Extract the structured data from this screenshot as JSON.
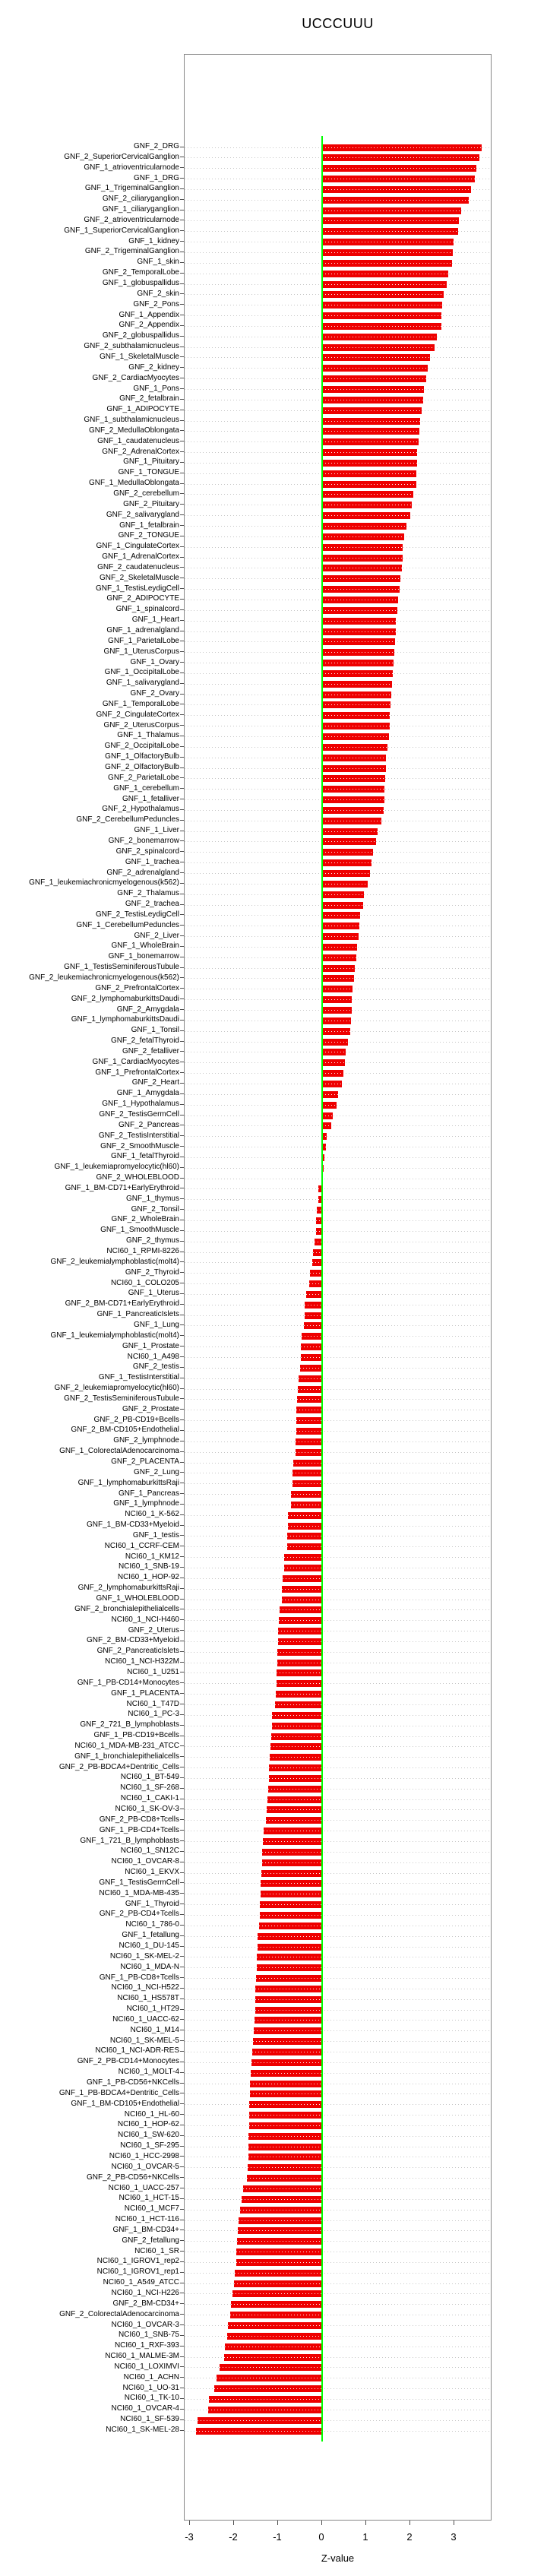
{
  "title": "UCCCUUU",
  "chart_data": {
    "type": "bar",
    "orientation": "horizontal",
    "title": "UCCCUUU",
    "xlabel": "Z-value",
    "xlim": [
      -3.12,
      3.86
    ],
    "xticks": [
      -3,
      -2,
      -1,
      0,
      1,
      2,
      3
    ],
    "grid": "dotted-row-guides",
    "legend": "none",
    "colors": {
      "bar": "#ee0000",
      "zero_line": "#00ff00",
      "guide_dots": "#c6c6c6",
      "frame": "#878787",
      "text": "#000000"
    },
    "categories": [
      "GNF_2_DRG",
      "GNF_2_SuperiorCervicalGanglion",
      "GNF_1_atrioventricularnode",
      "GNF_1_DRG",
      "GNF_1_TrigeminalGanglion",
      "GNF_2_ciliaryganglion",
      "GNF_1_ciliaryganglion",
      "GNF_2_atrioventricularnode",
      "GNF_1_SuperiorCervicalGanglion",
      "GNF_1_kidney",
      "GNF_2_TrigeminalGanglion",
      "GNF_1_skin",
      "GNF_2_TemporalLobe",
      "GNF_1_globuspallidus",
      "GNF_2_skin",
      "GNF_2_Pons",
      "GNF_1_Appendix",
      "GNF_2_Appendix",
      "GNF_2_globuspallidus",
      "GNF_2_subthalamicnucleus",
      "GNF_1_SkeletalMuscle",
      "GNF_2_kidney",
      "GNF_2_CardiacMyocytes",
      "GNF_1_Pons",
      "GNF_2_fetalbrain",
      "GNF_1_ADIPOCYTE",
      "GNF_1_subthalamicnucleus",
      "GNF_2_MedullaOblongata",
      "GNF_1_caudatenucleus",
      "GNF_2_AdrenalCortex",
      "GNF_1_Pituitary",
      "GNF_1_TONGUE",
      "GNF_1_MedullaOblongata",
      "GNF_2_cerebellum",
      "GNF_2_Pituitary",
      "GNF_2_salivarygland",
      "GNF_1_fetalbrain",
      "GNF_2_TONGUE",
      "GNF_1_CingulateCortex",
      "GNF_1_AdrenalCortex",
      "GNF_2_caudatenucleus",
      "GNF_2_SkeletalMuscle",
      "GNF_1_TestisLeydigCell",
      "GNF_2_ADIPOCYTE",
      "GNF_1_spinalcord",
      "GNF_1_Heart",
      "GNF_1_adrenalgland",
      "GNF_1_ParietalLobe",
      "GNF_1_UterusCorpus",
      "GNF_1_Ovary",
      "GNF_1_OccipitalLobe",
      "GNF_1_salivarygland",
      "GNF_2_Ovary",
      "GNF_1_TemporalLobe",
      "GNF_2_CingulateCortex",
      "GNF_2_UterusCorpus",
      "GNF_1_Thalamus",
      "GNF_2_OccipitalLobe",
      "GNF_1_OlfactoryBulb",
      "GNF_2_OlfactoryBulb",
      "GNF_2_ParietalLobe",
      "GNF_1_cerebellum",
      "GNF_1_fetalliver",
      "GNF_2_Hypothalamus",
      "GNF_2_CerebellumPeduncles",
      "GNF_1_Liver",
      "GNF_2_bonemarrow",
      "GNF_2_spinalcord",
      "GNF_1_trachea",
      "GNF_2_adrenalgland",
      "GNF_1_leukemiachronicmyelogenous(k562)",
      "GNF_2_Thalamus",
      "GNF_2_trachea",
      "GNF_2_TestisLeydigCell",
      "GNF_1_CerebellumPeduncles",
      "GNF_2_Liver",
      "GNF_1_WholeBrain",
      "GNF_1_bonemarrow",
      "GNF_1_TestisSeminiferousTubule",
      "GNF_2_leukemiachronicmyelogenous(k562)",
      "GNF_2_PrefrontalCortex",
      "GNF_2_lymphomaburkittsDaudi",
      "GNF_2_Amygdala",
      "GNF_1_lymphomaburkittsDaudi",
      "GNF_1_Tonsil",
      "GNF_2_fetalThyroid",
      "GNF_2_fetalliver",
      "GNF_1_CardiacMyocytes",
      "GNF_1_PrefrontalCortex",
      "GNF_2_Heart",
      "GNF_1_Amygdala",
      "GNF_1_Hypothalamus",
      "GNF_2_TestisGermCell",
      "GNF_2_Pancreas",
      "GNF_2_TestisInterstitial",
      "GNF_2_SmoothMuscle",
      "GNF_1_fetalThyroid",
      "GNF_1_leukemiapromyelocytic(hl60)",
      "GNF_2_WHOLEBLOOD",
      "GNF_1_BM-CD71+EarlyErythroid",
      "GNF_1_thymus",
      "GNF_2_Tonsil",
      "GNF_2_WholeBrain",
      "GNF_1_SmoothMuscle",
      "GNF_2_thymus",
      "NCI60_1_RPMI-8226",
      "GNF_2_leukemialymphoblastic(molt4)",
      "GNF_2_Thyroid",
      "NCI60_1_COLO205",
      "GNF_1_Uterus",
      "GNF_2_BM-CD71+EarlyErythroid",
      "GNF_1_PancreaticIslets",
      "GNF_1_Lung",
      "GNF_1_leukemialymphoblastic(molt4)",
      "GNF_1_Prostate",
      "NCI60_1_A498",
      "GNF_2_testis",
      "GNF_1_TestisInterstitial",
      "GNF_2_leukemiapromyelocytic(hl60)",
      "GNF_2_TestisSeminiferousTubule",
      "GNF_2_Prostate",
      "GNF_2_PB-CD19+Bcells",
      "GNF_2_BM-CD105+Endothelial",
      "GNF_2_lymphnode",
      "GNF_1_ColorectalAdenocarcinoma",
      "GNF_2_PLACENTA",
      "GNF_2_Lung",
      "GNF_1_lymphomaburkittsRaji",
      "GNF_1_Pancreas",
      "GNF_1_lymphnode",
      "NCI60_1_K-562",
      "GNF_1_BM-CD33+Myeloid",
      "GNF_1_testis",
      "NCI60_1_CCRF-CEM",
      "NCI60_1_KM12",
      "NCI60_1_SNB-19",
      "NCI60_1_HOP-92",
      "GNF_2_lymphomaburkittsRaji",
      "GNF_1_WHOLEBLOOD",
      "GNF_2_bronchialepithelialcells",
      "NCI60_1_NCI-H460",
      "GNF_2_Uterus",
      "GNF_2_BM-CD33+Myeloid",
      "GNF_2_PancreaticIslets",
      "NCI60_1_NCI-H322M",
      "NCI60_1_U251",
      "GNF_1_PB-CD14+Monocytes",
      "GNF_1_PLACENTA",
      "NCI60_1_T47D",
      "NCI60_1_PC-3",
      "GNF_2_721_B_lymphoblasts",
      "GNF_1_PB-CD19+Bcells",
      "NCI60_1_MDA-MB-231_ATCC",
      "GNF_1_bronchialepithelialcells",
      "GNF_2_PB-BDCA4+Dentritic_Cells",
      "NCI60_1_BT-549",
      "NCI60_1_SF-268",
      "NCI60_1_CAKI-1",
      "NCI60_1_SK-OV-3",
      "GNF_2_PB-CD8+Tcells",
      "GNF_1_PB-CD4+Tcells",
      "GNF_1_721_B_lymphoblasts",
      "NCI60_1_SN12C",
      "NCI60_1_OVCAR-8",
      "NCI60_1_EKVX",
      "GNF_1_TestisGermCell",
      "NCI60_1_MDA-MB-435",
      "GNF_1_Thyroid",
      "GNF_2_PB-CD4+Tcells",
      "NCI60_1_786-0",
      "GNF_1_fetallung",
      "NCI60_1_DU-145",
      "NCI60_1_SK-MEL-2",
      "NCI60_1_MDA-N",
      "GNF_1_PB-CD8+Tcells",
      "NCI60_1_NCI-H522",
      "NCI60_1_HS578T",
      "NCI60_1_HT29",
      "NCI60_1_UACC-62",
      "NCI60_1_M14",
      "NCI60_1_SK-MEL-5",
      "NCI60_1_NCI-ADR-RES",
      "GNF_2_PB-CD14+Monocytes",
      "NCI60_1_MOLT-4",
      "GNF_1_PB-CD56+NKCells",
      "GNF_1_PB-BDCA4+Dentritic_Cells",
      "GNF_1_BM-CD105+Endothelial",
      "NCI60_1_HL-60",
      "NCI60_1_HOP-62",
      "NCI60_1_SW-620",
      "NCI60_1_SF-295",
      "NCI60_1_HCC-2998",
      "NCI60_1_OVCAR-5",
      "GNF_2_PB-CD56+NKCells",
      "NCI60_1_UACC-257",
      "NCI60_1_HCT-15",
      "NCI60_1_MCF7",
      "NCI60_1_HCT-116",
      "GNF_1_BM-CD34+",
      "GNF_2_fetallung",
      "NCI60_1_SR",
      "NCI60_1_IGROV1_rep2",
      "NCI60_1_IGROV1_rep1",
      "NCI60_1_A549_ATCC",
      "NCI60_1_NCI-H226",
      "GNF_2_BM-CD34+",
      "GNF_2_ColorectalAdenocarcinoma",
      "NCI60_1_OVCAR-3",
      "NCI60_1_SNB-75",
      "NCI60_1_RXF-393",
      "NCI60_1_MALME-3M",
      "NCI60_1_LOXIMVI",
      "NCI60_1_ACHN",
      "NCI60_1_UO-31",
      "NCI60_1_TK-10",
      "NCI60_1_OVCAR-4",
      "NCI60_1_SF-539",
      "NCI60_1_SK-MEL-28"
    ],
    "values": [
      3.62,
      3.57,
      3.5,
      3.47,
      3.38,
      3.33,
      3.16,
      3.11,
      3.08,
      2.99,
      2.97,
      2.95,
      2.87,
      2.83,
      2.75,
      2.73,
      2.71,
      2.7,
      2.6,
      2.55,
      2.44,
      2.4,
      2.37,
      2.31,
      2.3,
      2.26,
      2.23,
      2.2,
      2.19,
      2.16,
      2.15,
      2.14,
      2.13,
      2.07,
      2.04,
      2.0,
      1.92,
      1.87,
      1.83,
      1.82,
      1.81,
      1.78,
      1.75,
      1.72,
      1.7,
      1.68,
      1.67,
      1.65,
      1.64,
      1.62,
      1.6,
      1.59,
      1.57,
      1.55,
      1.54,
      1.53,
      1.52,
      1.48,
      1.45,
      1.44,
      1.43,
      1.42,
      1.41,
      1.4,
      1.35,
      1.26,
      1.23,
      1.15,
      1.12,
      1.09,
      1.03,
      0.95,
      0.93,
      0.86,
      0.85,
      0.82,
      0.8,
      0.77,
      0.74,
      0.73,
      0.69,
      0.68,
      0.67,
      0.65,
      0.63,
      0.59,
      0.54,
      0.52,
      0.49,
      0.44,
      0.36,
      0.33,
      0.24,
      0.2,
      0.1,
      0.09,
      0.06,
      0.04,
      0.01,
      -0.08,
      -0.09,
      -0.12,
      -0.13,
      -0.14,
      -0.18,
      -0.21,
      -0.22,
      -0.28,
      -0.29,
      -0.36,
      -0.39,
      -0.4,
      -0.41,
      -0.46,
      -0.48,
      -0.49,
      -0.5,
      -0.53,
      -0.55,
      -0.57,
      -0.58,
      -0.58,
      -0.59,
      -0.6,
      -0.61,
      -0.66,
      -0.67,
      -0.68,
      -0.7,
      -0.71,
      -0.77,
      -0.78,
      -0.79,
      -0.8,
      -0.86,
      -0.87,
      -0.89,
      -0.91,
      -0.92,
      -0.97,
      -0.99,
      -1.0,
      -1.0,
      -1.01,
      -1.02,
      -1.03,
      -1.04,
      -1.06,
      -1.07,
      -1.13,
      -1.14,
      -1.16,
      -1.18,
      -1.19,
      -1.2,
      -1.21,
      -1.22,
      -1.25,
      -1.26,
      -1.27,
      -1.33,
      -1.35,
      -1.36,
      -1.37,
      -1.38,
      -1.39,
      -1.4,
      -1.41,
      -1.42,
      -1.43,
      -1.46,
      -1.47,
      -1.48,
      -1.49,
      -1.5,
      -1.51,
      -1.51,
      -1.52,
      -1.54,
      -1.55,
      -1.57,
      -1.58,
      -1.61,
      -1.62,
      -1.63,
      -1.64,
      -1.65,
      -1.66,
      -1.66,
      -1.67,
      -1.67,
      -1.68,
      -1.69,
      -1.7,
      -1.8,
      -1.82,
      -1.86,
      -1.9,
      -1.92,
      -1.93,
      -1.94,
      -1.95,
      -1.99,
      -2.0,
      -2.03,
      -2.07,
      -2.09,
      -2.13,
      -2.15,
      -2.21,
      -2.22,
      -2.32,
      -2.4,
      -2.45,
      -2.57,
      -2.58,
      -2.83,
      -2.87
    ]
  }
}
